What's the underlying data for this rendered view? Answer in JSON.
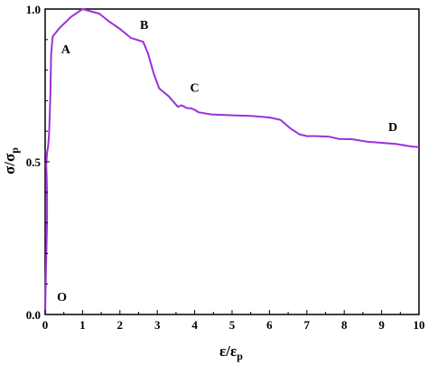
{
  "chart_data": {
    "type": "line",
    "title": "",
    "xlabel": {
      "base": "ε/ε",
      "sub": "p"
    },
    "ylabel": {
      "base": "σ/σ",
      "sub": "p"
    },
    "xlim": [
      0,
      10
    ],
    "ylim": [
      0,
      1.0
    ],
    "x_ticks": [
      "0",
      "1",
      "2",
      "3",
      "4",
      "5",
      "6",
      "7",
      "8",
      "9",
      "10"
    ],
    "y_ticks": [
      "0.0",
      "0.5",
      "1.0"
    ],
    "x_tick_values": [
      0,
      1,
      2,
      3,
      4,
      5,
      6,
      7,
      8,
      9,
      10
    ],
    "y_tick_values": [
      0.0,
      0.5,
      1.0
    ],
    "grid": false,
    "colors": {
      "line": "#9b30d9",
      "axis": "#000000"
    },
    "series": [
      {
        "x": [
          0.0,
          0.02,
          0.04,
          0.05,
          0.05,
          0.04,
          0.03,
          0.05,
          0.08,
          0.1,
          0.11,
          0.14,
          0.16,
          0.2,
          0.4,
          0.7,
          1.0,
          1.45,
          1.7,
          2.0,
          2.3,
          2.62,
          2.75,
          2.9,
          3.05,
          3.3,
          3.55,
          3.65,
          3.8,
          3.9,
          4.0,
          4.1,
          4.45,
          5.0,
          5.5,
          6.0,
          6.3,
          6.55,
          6.8,
          7.0,
          7.25,
          7.6,
          7.85,
          8.2,
          8.6,
          9.0,
          9.4,
          9.8,
          10.0
        ],
        "y": [
          0.0,
          0.13,
          0.25,
          0.31,
          0.38,
          0.45,
          0.49,
          0.53,
          0.55,
          0.58,
          0.61,
          0.72,
          0.85,
          0.91,
          0.94,
          0.975,
          1.0,
          0.985,
          0.96,
          0.935,
          0.905,
          0.893,
          0.855,
          0.79,
          0.74,
          0.715,
          0.68,
          0.685,
          0.675,
          0.675,
          0.67,
          0.662,
          0.655,
          0.652,
          0.65,
          0.645,
          0.637,
          0.61,
          0.59,
          0.584,
          0.584,
          0.582,
          0.575,
          0.574,
          0.566,
          0.562,
          0.558,
          0.55,
          0.548
        ]
      }
    ],
    "annotations": [
      {
        "text": "A",
        "x": 0.55,
        "y": 0.855
      },
      {
        "text": "B",
        "x": 2.65,
        "y": 0.935
      },
      {
        "text": "C",
        "x": 4.0,
        "y": 0.73
      },
      {
        "text": "D",
        "x": 9.3,
        "y": 0.6
      },
      {
        "text": "O",
        "x": 0.45,
        "y": 0.045
      }
    ]
  }
}
